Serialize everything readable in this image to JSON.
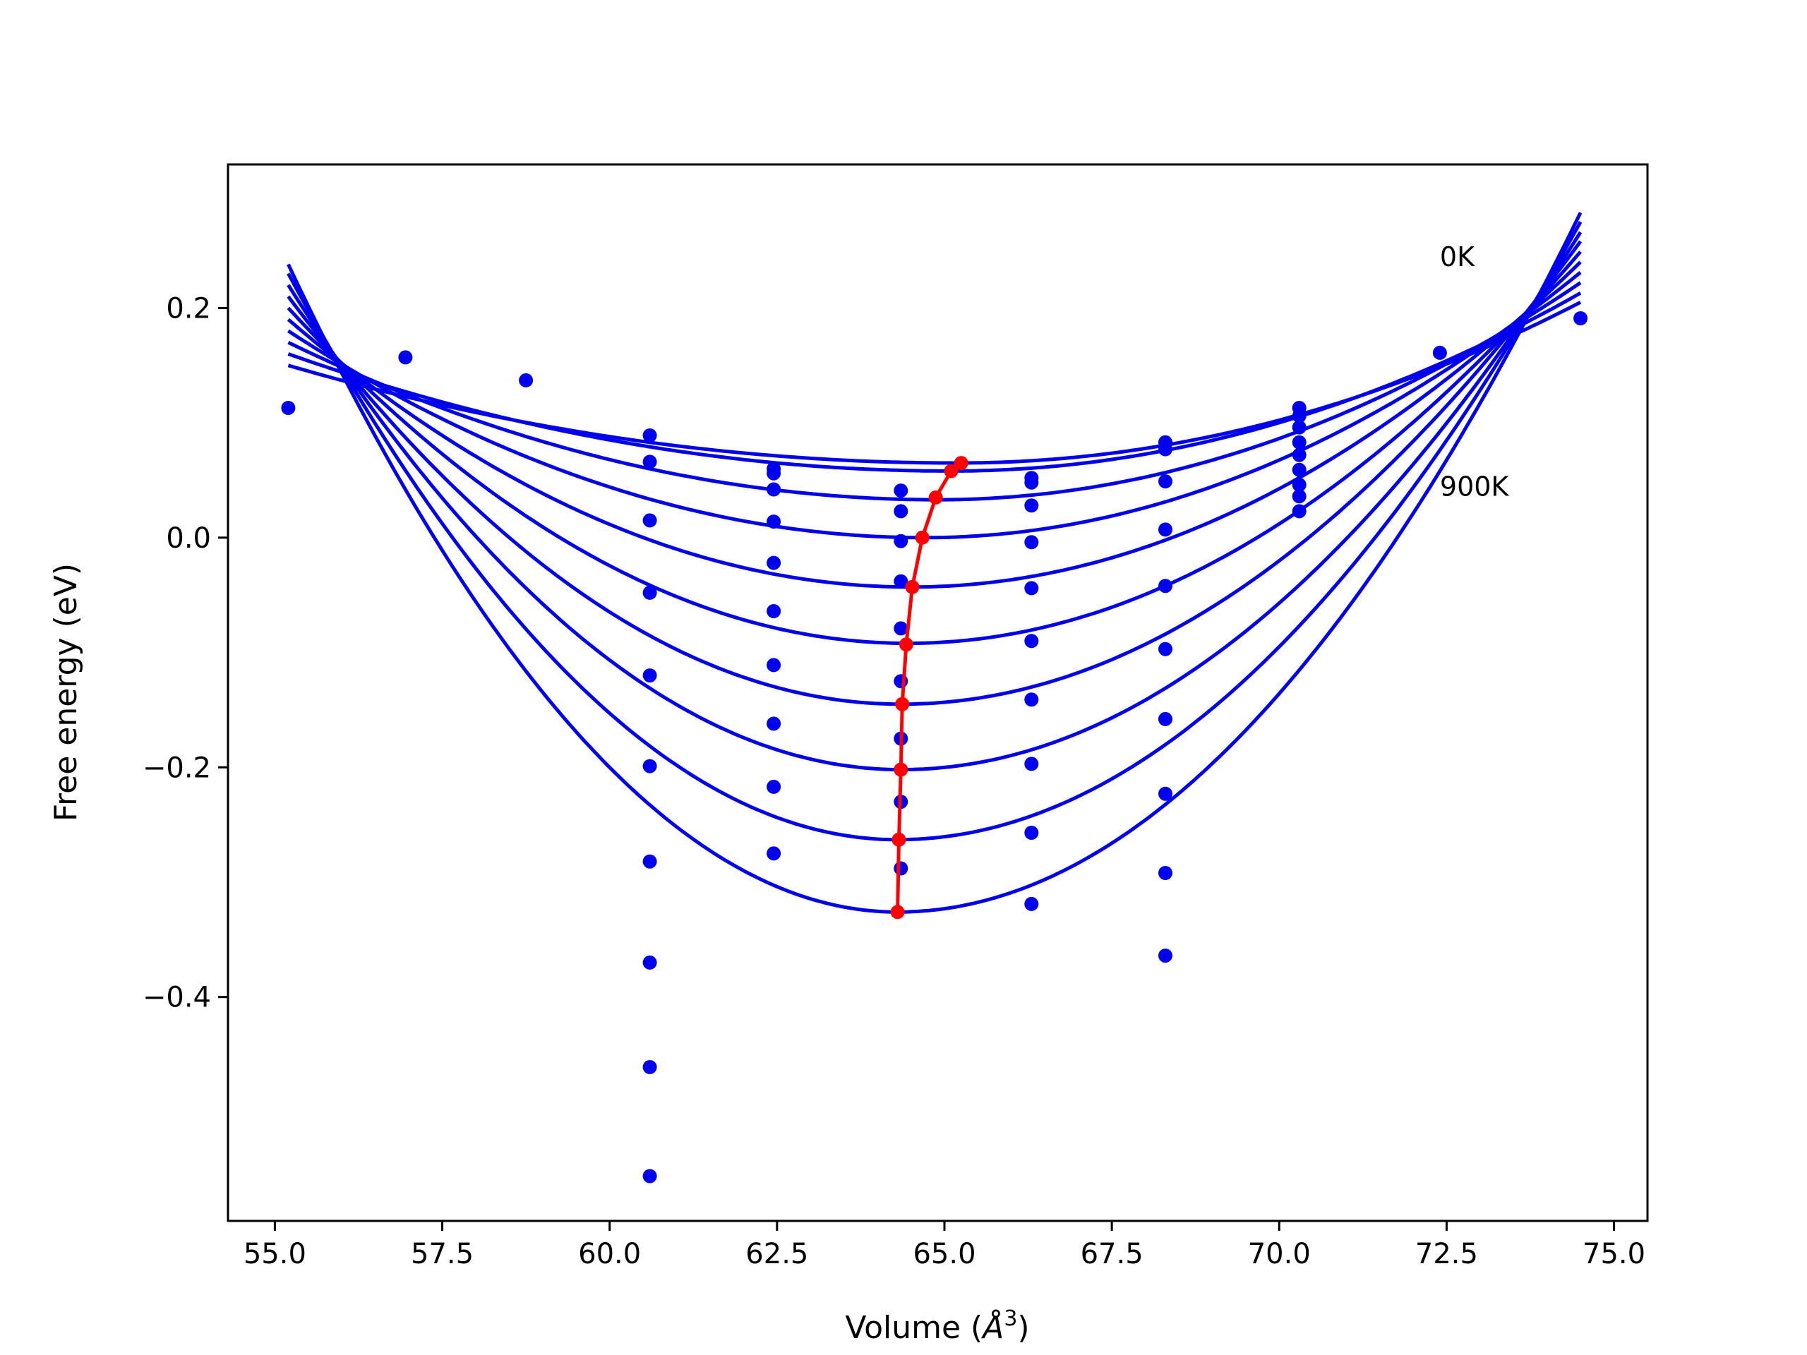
{
  "chart_data": {
    "type": "line",
    "title": "",
    "xlabel": "Volume (",
    "xlabel_symbol": "Å",
    "xlabel_exponent": "3",
    "xlabel_suffix": ")",
    "ylabel": "Free energy (eV)",
    "xlim": [
      54.3,
      75.5
    ],
    "ylim": [
      -0.595,
      0.325
    ],
    "xticks": [
      55.0,
      57.5,
      60.0,
      62.5,
      65.0,
      67.5,
      70.0,
      72.5,
      75.0
    ],
    "xtick_labels": [
      "55.0",
      "57.5",
      "60.0",
      "62.5",
      "65.0",
      "67.5",
      "70.0",
      "72.5",
      "75.0"
    ],
    "yticks": [
      0.2,
      0.0,
      -0.2,
      -0.4
    ],
    "ytick_labels": [
      "0.2",
      "0.0",
      "−0.2",
      "−0.4"
    ],
    "grid": false,
    "colors": {
      "curves": "#0000ee",
      "points": "#0000ee",
      "minimum_path": "#ff0000"
    },
    "annotations": [
      {
        "text": "0K",
        "x": 72.4,
        "y": 0.245
      },
      {
        "text": "900K",
        "x": 72.4,
        "y": 0.045
      }
    ],
    "curve_x_range": [
      55.2,
      74.5
    ],
    "series": [
      {
        "min_v": 65.2,
        "min_f": 0.065,
        "f_left": 0.15,
        "f_right": 0.205
      },
      {
        "min_v": 65.1,
        "min_f": 0.058,
        "f_left": 0.16,
        "f_right": 0.213
      },
      {
        "min_v": 64.9,
        "min_f": 0.033,
        "f_left": 0.17,
        "f_right": 0.222
      },
      {
        "min_v": 64.7,
        "min_f": 0.0,
        "f_left": 0.18,
        "f_right": 0.231
      },
      {
        "min_v": 64.5,
        "min_f": -0.043,
        "f_left": 0.19,
        "f_right": 0.24
      },
      {
        "min_v": 64.45,
        "min_f": -0.092,
        "f_left": 0.2,
        "f_right": 0.249
      },
      {
        "min_v": 64.35,
        "min_f": -0.145,
        "f_left": 0.21,
        "f_right": 0.258
      },
      {
        "min_v": 64.35,
        "min_f": -0.202,
        "f_left": 0.22,
        "f_right": 0.266
      },
      {
        "min_v": 64.3,
        "min_f": -0.263,
        "f_left": 0.23,
        "f_right": 0.275
      },
      {
        "min_v": 64.3,
        "min_f": -0.326,
        "f_left": 0.238,
        "f_right": 0.283
      }
    ],
    "points": [
      [
        55.2,
        0.113
      ],
      [
        56.95,
        0.157
      ],
      [
        58.75,
        0.137
      ],
      [
        60.6,
        0.089
      ],
      [
        60.6,
        0.066
      ],
      [
        60.6,
        0.015
      ],
      [
        60.6,
        -0.048
      ],
      [
        60.6,
        -0.12
      ],
      [
        60.6,
        -0.199
      ],
      [
        60.6,
        -0.282
      ],
      [
        60.6,
        -0.37
      ],
      [
        60.6,
        -0.461
      ],
      [
        60.6,
        -0.556
      ],
      [
        62.45,
        0.06
      ],
      [
        62.45,
        0.056
      ],
      [
        62.45,
        0.042
      ],
      [
        62.45,
        0.014
      ],
      [
        62.45,
        -0.022
      ],
      [
        62.45,
        -0.064
      ],
      [
        62.45,
        -0.111
      ],
      [
        62.45,
        -0.162
      ],
      [
        62.45,
        -0.217
      ],
      [
        62.45,
        -0.275
      ],
      [
        64.35,
        0.041
      ],
      [
        64.35,
        0.023
      ],
      [
        64.35,
        -0.003
      ],
      [
        64.35,
        -0.038
      ],
      [
        64.35,
        -0.079
      ],
      [
        64.35,
        -0.125
      ],
      [
        64.35,
        -0.175
      ],
      [
        64.35,
        -0.23
      ],
      [
        64.35,
        -0.288
      ],
      [
        66.3,
        0.052
      ],
      [
        66.3,
        0.048
      ],
      [
        66.3,
        0.028
      ],
      [
        66.3,
        -0.004
      ],
      [
        66.3,
        -0.044
      ],
      [
        66.3,
        -0.09
      ],
      [
        66.3,
        -0.141
      ],
      [
        66.3,
        -0.197
      ],
      [
        66.3,
        -0.257
      ],
      [
        66.3,
        -0.319
      ],
      [
        68.3,
        0.083
      ],
      [
        68.3,
        0.077
      ],
      [
        68.3,
        0.049
      ],
      [
        68.3,
        0.007
      ],
      [
        68.3,
        -0.042
      ],
      [
        68.3,
        -0.097
      ],
      [
        68.3,
        -0.158
      ],
      [
        68.3,
        -0.223
      ],
      [
        68.3,
        -0.292
      ],
      [
        68.3,
        -0.364
      ],
      [
        70.3,
        0.113
      ],
      [
        70.3,
        0.106
      ],
      [
        70.3,
        0.096
      ],
      [
        70.3,
        0.083
      ],
      [
        70.3,
        0.072
      ],
      [
        70.3,
        0.059
      ],
      [
        70.3,
        0.046
      ],
      [
        70.3,
        0.036
      ],
      [
        70.3,
        0.023
      ],
      [
        72.4,
        0.161
      ],
      [
        74.5,
        0.191
      ]
    ],
    "minimum_path": [
      [
        65.25,
        0.065
      ],
      [
        65.1,
        0.058
      ],
      [
        64.87,
        0.035
      ],
      [
        64.67,
        0.0
      ],
      [
        64.52,
        -0.043
      ],
      [
        64.43,
        -0.093
      ],
      [
        64.37,
        -0.145
      ],
      [
        64.35,
        -0.202
      ],
      [
        64.32,
        -0.263
      ],
      [
        64.3,
        -0.326
      ]
    ]
  }
}
